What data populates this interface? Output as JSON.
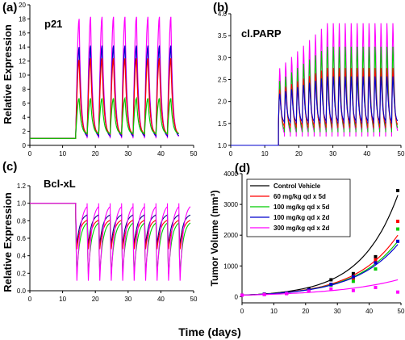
{
  "figure": {
    "ylabel_left": "Relative Expression",
    "xlabel_bottom": "Time (days)"
  },
  "chart_data": [
    {
      "type": "line",
      "panel_label": "(a)",
      "title": "p21",
      "xlim": [
        0,
        50
      ],
      "ylim": [
        0,
        20
      ],
      "x_ticks": [
        0,
        10,
        20,
        30,
        40,
        50
      ],
      "y_ticks": [
        0,
        2,
        4,
        6,
        8,
        10,
        12,
        14,
        16,
        18,
        20
      ],
      "baseline": 1,
      "switch_day": 14,
      "period": 3.5,
      "cycles": 9,
      "series": [
        {
          "color": "#ff00ff",
          "values_peak": [
            18.0,
            18.3,
            18.3,
            18.3,
            18.3,
            18.3,
            18.3,
            18.3,
            18.3
          ],
          "trough": 1.0
        },
        {
          "color": "#0000cc",
          "values_peak": [
            14.0,
            14.2,
            14.2,
            14.2,
            14.2,
            14.2,
            14.2,
            14.2,
            14.2
          ],
          "trough": 1.2
        },
        {
          "color": "#ff0000",
          "values_peak": [
            12.2,
            12.4,
            12.4,
            12.4,
            12.4,
            12.4,
            12.4,
            12.4,
            12.4
          ],
          "trough": 1.5
        },
        {
          "color": "#00cc00",
          "values_peak": [
            6.7,
            6.7,
            6.7,
            6.7,
            6.7,
            6.7,
            6.7,
            6.7,
            6.7
          ],
          "trough": 1.6
        }
      ]
    },
    {
      "type": "line",
      "panel_label": "(b)",
      "title": "cl.PARP",
      "xlim": [
        0,
        50
      ],
      "ylim": [
        1.0,
        4.0
      ],
      "x_ticks": [
        0,
        10,
        20,
        30,
        40,
        50
      ],
      "y_ticks": [
        1.0,
        1.5,
        2.0,
        2.5,
        3.0,
        3.5,
        4.0
      ],
      "baseline": 1.0,
      "switch_day": 14,
      "period": 1.75,
      "cycles": 20,
      "series": [
        {
          "color": "#ff00ff",
          "peak_start": 2.8,
          "peak_end": 3.85,
          "trough": 1.2
        },
        {
          "color": "#00cc00",
          "peak_start": 2.5,
          "peak_end": 3.3,
          "trough": 1.3
        },
        {
          "color": "#ff0000",
          "peak_start": 2.3,
          "peak_end": 2.8,
          "trough": 1.4
        },
        {
          "color": "#0000cc",
          "peak_start": 2.2,
          "peak_end": 2.6,
          "trough": 1.5
        }
      ]
    },
    {
      "type": "line",
      "panel_label": "(c)",
      "title": "Bcl-xL",
      "xlim": [
        0,
        50
      ],
      "ylim": [
        0,
        1.2
      ],
      "x_ticks": [
        0,
        10,
        20,
        30,
        40,
        50
      ],
      "y_ticks": [
        0.0,
        0.2,
        0.4,
        0.6,
        0.8,
        1.0,
        1.2
      ],
      "baseline": 1.0,
      "switch_day": 14,
      "period": 3.5,
      "cycles": 10,
      "series": [
        {
          "color": "#000080",
          "high": 0.88,
          "low": 0.5
        },
        {
          "color": "#ff0000",
          "high": 0.82,
          "low": 0.45
        },
        {
          "color": "#00cc00",
          "high": 0.8,
          "low": 0.15
        },
        {
          "color": "#ff00ff",
          "high": 1.0,
          "low": 0.05
        }
      ]
    },
    {
      "type": "scatter",
      "panel_label": "(d)",
      "ylabel": "Tumor Volume (mm³)",
      "xlim": [
        0,
        50
      ],
      "ylim": [
        -200,
        4000
      ],
      "x_ticks": [
        0,
        10,
        20,
        30,
        40,
        50
      ],
      "y_ticks": [
        0,
        1000,
        2000,
        3000,
        4000
      ],
      "legend_position": "top-left",
      "series": [
        {
          "name": "Control Vehicle",
          "color": "#000000",
          "x": [
            0,
            7,
            14,
            21,
            28,
            35,
            42,
            49
          ],
          "y": [
            50,
            80,
            120,
            250,
            550,
            750,
            1300,
            3450
          ],
          "curve_end": 3300
        },
        {
          "name": "60 mg/kg qd x 5d",
          "color": "#ff0000",
          "x": [
            0,
            7,
            14,
            21,
            28,
            35,
            42,
            49
          ],
          "y": [
            50,
            80,
            120,
            220,
            400,
            600,
            1200,
            2450
          ],
          "curve_end": 2000
        },
        {
          "name": "100 mg/kg qd x 5d",
          "color": "#00cc00",
          "x": [
            0,
            7,
            14,
            21,
            28,
            35,
            42,
            49
          ],
          "y": [
            50,
            80,
            120,
            220,
            380,
            500,
            900,
            2200
          ],
          "curve_end": 1800
        },
        {
          "name": "100 mg/kg qd x 2d",
          "color": "#0000cc",
          "x": [
            0,
            7,
            14,
            21,
            28,
            35,
            42,
            49
          ],
          "y": [
            50,
            80,
            120,
            220,
            400,
            650,
            1100,
            1800
          ],
          "curve_end": 1700
        },
        {
          "name": "300 mg/kg qd x 2d",
          "color": "#ff00ff",
          "x": [
            0,
            7,
            14,
            21,
            28,
            35,
            42,
            49
          ],
          "y": [
            50,
            70,
            100,
            180,
            250,
            200,
            300,
            150
          ],
          "curve_end": 550
        }
      ]
    }
  ]
}
